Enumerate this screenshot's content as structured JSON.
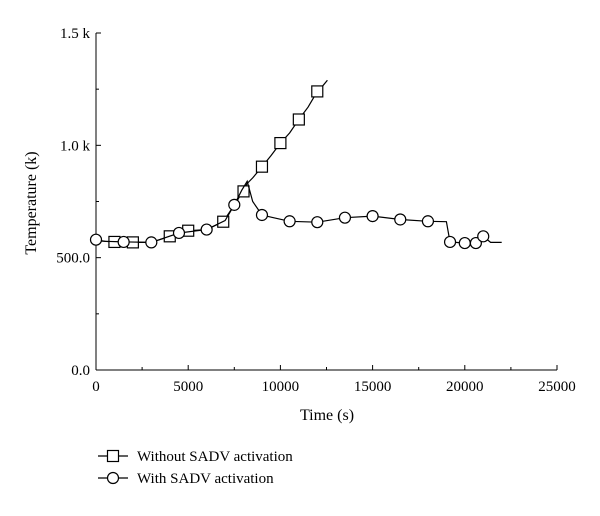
{
  "chart_data": {
    "type": "line",
    "title": "",
    "xlabel": "Time (s)",
    "ylabel": "Temperature (k)",
    "xlim": [
      0,
      25000
    ],
    "ylim": [
      0,
      1500
    ],
    "xticks": [
      0,
      5000,
      10000,
      15000,
      20000,
      25000
    ],
    "xtick_labels": [
      "0",
      "5000",
      "10000",
      "15000",
      "20000",
      "25000"
    ],
    "yticks": [
      0,
      500,
      1000,
      1500
    ],
    "ytick_labels": [
      "0.0",
      "500.0",
      "1.0 k",
      "1.5 k"
    ],
    "legend_position": "bottom-left",
    "series": [
      {
        "name": "Without SADV activation",
        "marker": "square",
        "line": [
          [
            0,
            575
          ],
          [
            1000,
            570
          ],
          [
            2000,
            568
          ],
          [
            3000,
            568
          ],
          [
            4000,
            595
          ],
          [
            5000,
            620
          ],
          [
            6000,
            625
          ],
          [
            6900,
            660
          ],
          [
            7700,
            760
          ],
          [
            8200,
            830
          ],
          [
            8500,
            855
          ],
          [
            9000,
            905
          ],
          [
            9500,
            955
          ],
          [
            10000,
            1010
          ],
          [
            10500,
            1055
          ],
          [
            11000,
            1115
          ],
          [
            11500,
            1170
          ],
          [
            12000,
            1240
          ],
          [
            12300,
            1265
          ],
          [
            12550,
            1290
          ]
        ],
        "markers": [
          [
            1000,
            570
          ],
          [
            2000,
            568
          ],
          [
            4000,
            595
          ],
          [
            5000,
            620
          ],
          [
            6900,
            660
          ],
          [
            8000,
            795
          ],
          [
            9000,
            905
          ],
          [
            10000,
            1010
          ],
          [
            11000,
            1115
          ],
          [
            12000,
            1240
          ]
        ]
      },
      {
        "name": "With SADV activation",
        "marker": "circle",
        "line": [
          [
            0,
            580
          ],
          [
            500,
            573
          ],
          [
            1500,
            570
          ],
          [
            3000,
            568
          ],
          [
            4500,
            610
          ],
          [
            6000,
            625
          ],
          [
            7000,
            665
          ],
          [
            7500,
            735
          ],
          [
            7900,
            800
          ],
          [
            8200,
            840
          ],
          [
            8500,
            750
          ],
          [
            9000,
            690
          ],
          [
            9500,
            680
          ],
          [
            10500,
            662
          ],
          [
            12000,
            658
          ],
          [
            13500,
            678
          ],
          [
            15000,
            685
          ],
          [
            16500,
            670
          ],
          [
            18000,
            662
          ],
          [
            19000,
            660
          ],
          [
            19200,
            570
          ],
          [
            20000,
            565
          ],
          [
            20600,
            565
          ],
          [
            21000,
            595
          ],
          [
            21400,
            568
          ],
          [
            22000,
            568
          ]
        ],
        "markers": [
          [
            0,
            580
          ],
          [
            1500,
            570
          ],
          [
            3000,
            568
          ],
          [
            4500,
            610
          ],
          [
            6000,
            625
          ],
          [
            7500,
            735
          ],
          [
            9000,
            690
          ],
          [
            10500,
            662
          ],
          [
            12000,
            658
          ],
          [
            13500,
            678
          ],
          [
            15000,
            685
          ],
          [
            16500,
            670
          ],
          [
            18000,
            662
          ],
          [
            19200,
            570
          ],
          [
            20000,
            565
          ],
          [
            20600,
            565
          ],
          [
            21000,
            595
          ]
        ]
      }
    ]
  }
}
